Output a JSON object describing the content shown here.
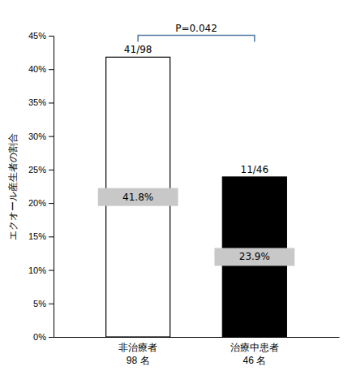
{
  "chart_data": {
    "type": "bar",
    "categories": [
      "非治療者\n98 名",
      "治療中患者\n46 名"
    ],
    "values": [
      41.8,
      23.9
    ],
    "value_labels": [
      "41.8%",
      "23.9%"
    ],
    "data_labels": true,
    "colors": [
      "white",
      "black"
    ],
    "ylabel": "エクオール産生者の割合",
    "ylim": [
      0,
      45
    ],
    "yticks": [
      {
        "value": 0,
        "label": "0%"
      },
      {
        "value": 5,
        "label": "5%"
      },
      {
        "value": 10,
        "label": "10%"
      },
      {
        "value": 15,
        "label": "15%"
      },
      {
        "value": 20,
        "label": "20%"
      },
      {
        "value": 25,
        "label": "25%"
      },
      {
        "value": 30,
        "label": "30%"
      },
      {
        "value": 35,
        "label": "35%"
      },
      {
        "value": 40,
        "label": "40%"
      },
      {
        "value": 45,
        "label": "45%"
      }
    ],
    "grid": false,
    "annotations": [
      {
        "text": "41/98",
        "category": "非治療者\n98 名"
      },
      {
        "text": "11/46",
        "category": "治療中患者\n46 名"
      },
      {
        "text": "P=0.042",
        "categories": [
          "非治療者\n98 名",
          "治療中患者\n46 名"
        ]
      }
    ]
  }
}
